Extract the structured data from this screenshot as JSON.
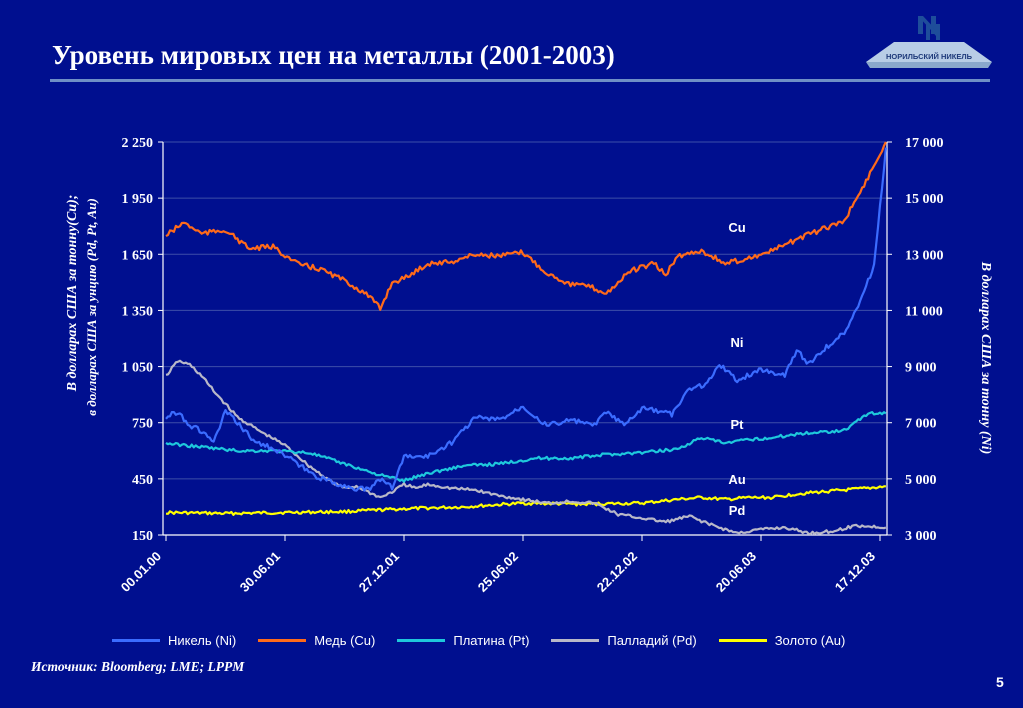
{
  "slide": {
    "title": "Уровень мировых цен на металлы  (2001-2003)",
    "logo_text": "НОРИЛЬСКИЙ НИКЕЛЬ",
    "source": "Источник: Bloomberg; LME; LPPM",
    "page_number": "5"
  },
  "colors": {
    "background": "#000f8f",
    "nickel": "#3b6cff",
    "copper": "#ff6a1a",
    "platinum": "#1ec8dc",
    "palladium": "#b8b8c8",
    "gold": "#ffff00",
    "rule": "#6f8fc6"
  },
  "chart_data": {
    "type": "line",
    "title": "",
    "ylabel_left": "В долларах США за тонну(Cu);",
    "ylabel_left_2": "в долларах США за унцию (Pd, Pt, Au)",
    "ylabel_right": "В долларах США за тонну (Ni)",
    "x_ticks": [
      "00.01.00",
      "30.06.01",
      "27.12.01",
      "25.06.02",
      "22.12.02",
      "20.06.03",
      "17.12.03"
    ],
    "x_tick_positions": [
      0,
      1,
      2,
      3,
      4,
      5,
      6
    ],
    "x_range": [
      0,
      6.05
    ],
    "ylim_left": [
      150,
      2250
    ],
    "ylim_right": [
      3000,
      17000
    ],
    "yticks_left": [
      "2 250",
      "1 950",
      "1 650",
      "1 350",
      "1 050",
      "750",
      "450",
      "150"
    ],
    "yticks_left_values": [
      2250,
      1950,
      1650,
      1350,
      1050,
      750,
      450,
      150
    ],
    "yticks_right": [
      "17 000",
      "15 000",
      "13 000",
      "11 000",
      "9 000",
      "7 000",
      "5 000",
      "3 000"
    ],
    "yticks_right_values": [
      17000,
      15000,
      13000,
      11000,
      9000,
      7000,
      5000,
      3000
    ],
    "grid": "horizontal",
    "legend_position": "bottom",
    "series": [
      {
        "name": "Никель (Ni)",
        "label": "Ni",
        "axis": "right",
        "color": "#3b6cff",
        "x": [
          0,
          0.1,
          0.2,
          0.3,
          0.4,
          0.5,
          0.6,
          0.75,
          0.9,
          1.05,
          1.25,
          1.45,
          1.55,
          1.7,
          1.8,
          1.9,
          2.0,
          2.2,
          2.4,
          2.6,
          2.8,
          3.0,
          3.2,
          3.4,
          3.6,
          3.7,
          3.85,
          4.0,
          4.15,
          4.25,
          4.4,
          4.55,
          4.65,
          4.8,
          5.0,
          5.2,
          5.3,
          5.4,
          5.55,
          5.7,
          5.85,
          5.95,
          6.05
        ],
        "y": [
          7200,
          7400,
          6900,
          6700,
          6300,
          7400,
          7000,
          6300,
          6100,
          5700,
          5100,
          4800,
          4700,
          4600,
          5000,
          4700,
          5800,
          5800,
          6300,
          7200,
          7100,
          7600,
          6900,
          7100,
          6900,
          7400,
          6900,
          7500,
          7400,
          7300,
          8200,
          8400,
          9100,
          8500,
          8900,
          8700,
          9600,
          9100,
          9700,
          10200,
          11500,
          12600,
          16800
        ]
      },
      {
        "name": "Медь (Cu)",
        "label": "Cu",
        "axis": "left",
        "color": "#ff6a1a",
        "x": [
          0,
          0.15,
          0.3,
          0.5,
          0.7,
          0.9,
          1.1,
          1.3,
          1.5,
          1.7,
          1.8,
          1.9,
          2.0,
          2.2,
          2.4,
          2.6,
          2.8,
          3.0,
          3.2,
          3.4,
          3.55,
          3.7,
          3.9,
          4.1,
          4.2,
          4.3,
          4.5,
          4.7,
          4.9,
          5.1,
          5.3,
          5.5,
          5.7,
          5.9,
          6.05
        ],
        "y": [
          1750,
          1820,
          1760,
          1780,
          1680,
          1690,
          1600,
          1570,
          1510,
          1430,
          1360,
          1500,
          1520,
          1600,
          1610,
          1650,
          1640,
          1660,
          1550,
          1490,
          1480,
          1440,
          1560,
          1600,
          1540,
          1640,
          1670,
          1600,
          1630,
          1670,
          1730,
          1780,
          1830,
          2060,
          2250
        ]
      },
      {
        "name": "Платина (Pt)",
        "label": "Pt",
        "axis": "left",
        "color": "#1ec8dc",
        "x": [
          0,
          0.3,
          0.6,
          0.9,
          1.2,
          1.5,
          1.8,
          2.0,
          2.2,
          2.5,
          2.8,
          3.1,
          3.4,
          3.7,
          4.0,
          4.3,
          4.5,
          4.7,
          4.9,
          5.1,
          5.3,
          5.5,
          5.7,
          5.9,
          6.05
        ],
        "y": [
          640,
          620,
          600,
          600,
          590,
          530,
          470,
          440,
          480,
          520,
          530,
          560,
          560,
          580,
          590,
          610,
          670,
          640,
          660,
          670,
          690,
          700,
          710,
          800,
          800
        ]
      },
      {
        "name": "Палладий (Pd)",
        "label": "Pd",
        "axis": "left",
        "color": "#b8b8c8",
        "x": [
          0,
          0.1,
          0.2,
          0.3,
          0.4,
          0.5,
          0.6,
          0.8,
          1.0,
          1.2,
          1.4,
          1.5,
          1.6,
          1.8,
          1.9,
          2.0,
          2.1,
          2.2,
          2.4,
          2.6,
          2.8,
          3.0,
          3.2,
          3.4,
          3.6,
          3.8,
          4.0,
          4.2,
          4.4,
          4.6,
          4.8,
          5.0,
          5.2,
          5.4,
          5.6,
          5.8,
          6.05
        ],
        "y": [
          1000,
          1080,
          1060,
          1000,
          920,
          850,
          780,
          700,
          630,
          520,
          430,
          400,
          410,
          350,
          380,
          420,
          400,
          420,
          400,
          390,
          360,
          340,
          320,
          330,
          320,
          260,
          240,
          220,
          250,
          200,
          160,
          180,
          190,
          160,
          170,
          200,
          190
        ]
      },
      {
        "name": "Золото (Au)",
        "label": "Au",
        "axis": "left",
        "color": "#ffff00",
        "x": [
          0,
          0.5,
          1.0,
          1.5,
          2.0,
          2.5,
          3.0,
          3.5,
          4.0,
          4.3,
          4.5,
          4.7,
          4.9,
          5.1,
          5.3,
          5.5,
          5.7,
          5.9,
          6.05
        ],
        "y": [
          270,
          265,
          270,
          275,
          290,
          300,
          320,
          315,
          320,
          340,
          350,
          340,
          350,
          350,
          370,
          380,
          390,
          400,
          410
        ]
      }
    ],
    "annotations": [
      "Cu",
      "Ni",
      "Pt",
      "Au",
      "Pd"
    ]
  },
  "legend": [
    {
      "label": "Никель (Ni)",
      "color": "#3b6cff"
    },
    {
      "label": "Медь (Cu)",
      "color": "#ff6a1a"
    },
    {
      "label": "Платина (Pt)",
      "color": "#1ec8dc"
    },
    {
      "label": "Палладий (Pd)",
      "color": "#b8b8c8"
    },
    {
      "label": "Золото (Au)",
      "color": "#ffff00"
    }
  ]
}
